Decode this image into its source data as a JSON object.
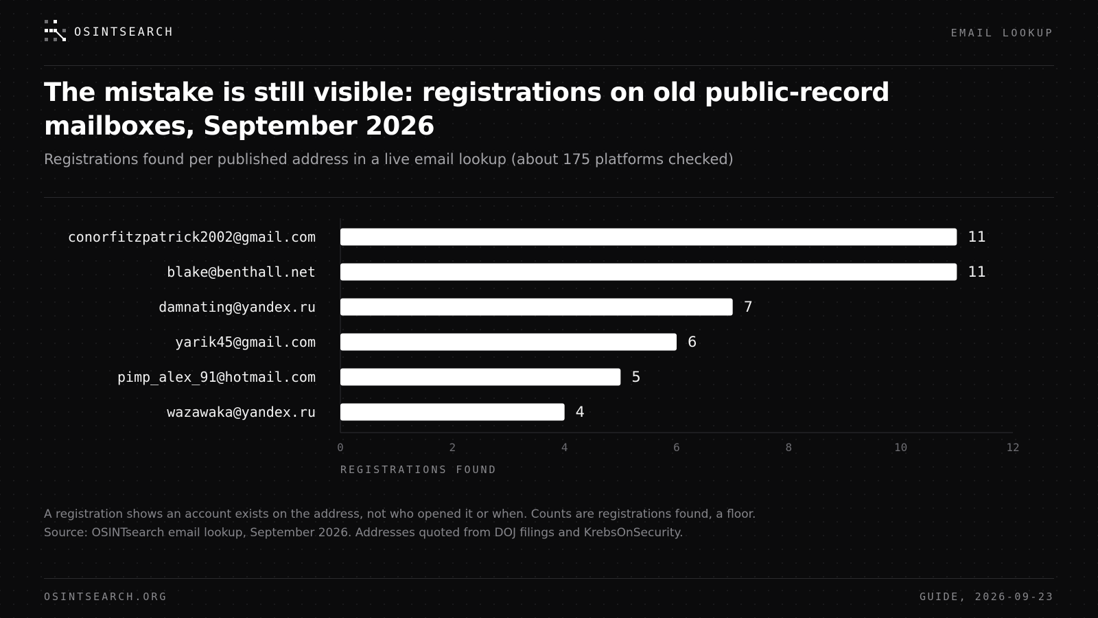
{
  "header": {
    "brand": "OSINTSEARCH",
    "section": "EMAIL LOOKUP"
  },
  "icons": {
    "logo": "network-graph-logo-icon"
  },
  "title": "The mistake is still visible: registrations on old public-record mailboxes, September 2026",
  "subtitle": "Registrations found per published address in a live email lookup (about 175 platforms checked)",
  "chart_data": {
    "type": "bar",
    "orientation": "horizontal",
    "categories": [
      "conorfitzpatrick2002@gmail.com",
      "blake@benthall.net",
      "damnating@yandex.ru",
      "yarik45@gmail.com",
      "pimp_alex_91@hotmail.com",
      "wazawaka@yandex.ru"
    ],
    "values": [
      11,
      11,
      7,
      6,
      5,
      4
    ],
    "xlabel": "REGISTRATIONS FOUND",
    "ylabel": "",
    "xlim": [
      0,
      12
    ],
    "xticks": [
      0,
      2,
      4,
      6,
      8,
      10,
      12
    ],
    "grid": false,
    "legend": "none",
    "bar_color": "#ffffff",
    "data_labels": true
  },
  "notes": [
    "A registration shows an account exists on the address, not who opened it or when. Counts are registrations found, a floor.",
    "Source: OSINTsearch email lookup, September 2026. Addresses quoted from DOJ filings and KrebsOnSecurity."
  ],
  "footer": {
    "site": "OSINTSEARCH.ORG",
    "date": "GUIDE, 2026-09-23"
  },
  "colors": {
    "background": "#0b0b0c",
    "text": "#ffffff",
    "muted": "#8a8a8e",
    "rule": "#2b2b2e"
  }
}
